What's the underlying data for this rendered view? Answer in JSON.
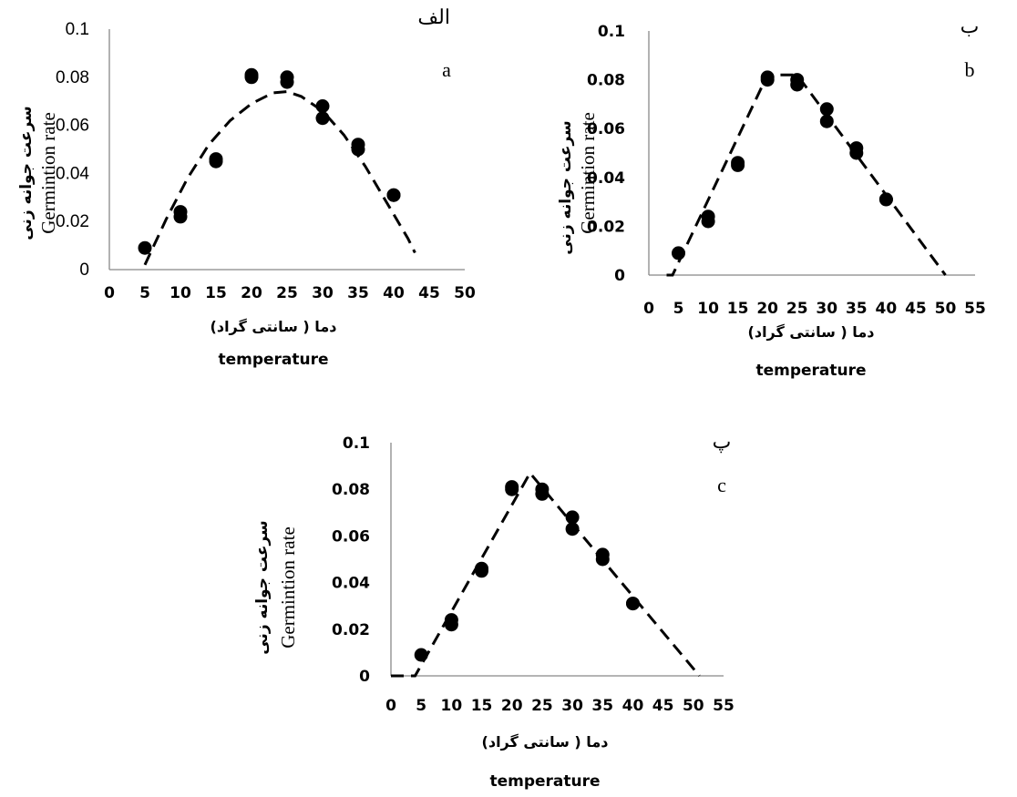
{
  "chart_data": [
    {
      "type": "scatter",
      "panel_fa": "الف",
      "panel_en": "a",
      "xlabel_fa": "دما ( سانتی گراد)",
      "xlabel_en": "temperature",
      "ylabel_fa": "سرعت جوانه زنی",
      "ylabel_en": "Germintion rate",
      "xlim": [
        0,
        50
      ],
      "ylim": [
        0,
        0.1
      ],
      "x_ticks": [
        "0",
        "5",
        "10",
        "15",
        "20",
        "25",
        "30",
        "35",
        "40",
        "45",
        "50"
      ],
      "y_ticks": [
        "0",
        "0.02",
        "0.04",
        "0.06",
        "0.08",
        "0.1"
      ],
      "points": [
        [
          5,
          0.009
        ],
        [
          10,
          0.022
        ],
        [
          10,
          0.024
        ],
        [
          15,
          0.045
        ],
        [
          15,
          0.046
        ],
        [
          20,
          0.08
        ],
        [
          20,
          0.081
        ],
        [
          25,
          0.078
        ],
        [
          25,
          0.08
        ],
        [
          30,
          0.063
        ],
        [
          30,
          0.068
        ],
        [
          35,
          0.05
        ],
        [
          35,
          0.052
        ],
        [
          40,
          0.031
        ],
        [
          40,
          0.031
        ]
      ],
      "fit": {
        "model": "quadratic",
        "points": [
          [
            5,
            0.002
          ],
          [
            8,
            0.021
          ],
          [
            11,
            0.038
          ],
          [
            14,
            0.052
          ],
          [
            17,
            0.062
          ],
          [
            20,
            0.069
          ],
          [
            23,
            0.0735
          ],
          [
            25,
            0.074
          ],
          [
            27,
            0.072
          ],
          [
            30,
            0.066
          ],
          [
            33,
            0.056
          ],
          [
            36,
            0.043
          ],
          [
            39,
            0.028
          ],
          [
            42,
            0.013
          ],
          [
            43,
            0.007
          ]
        ]
      }
    },
    {
      "type": "scatter",
      "panel_fa": "ب",
      "panel_en": "b",
      "xlabel_fa": "دما ( سانتی گراد)",
      "xlabel_en": "temperature",
      "ylabel_fa": "سرعت جوانه زنی",
      "ylabel_en": "Germintion rate",
      "xlim": [
        0,
        55
      ],
      "ylim": [
        0,
        0.1
      ],
      "x_ticks": [
        "0",
        "5",
        "10",
        "15",
        "20",
        "25",
        "30",
        "35",
        "40",
        "45",
        "50",
        "55"
      ],
      "y_ticks": [
        "0",
        "0.02",
        "0.04",
        "0.06",
        "0.08",
        "0.1"
      ],
      "points": [
        [
          5,
          0.009
        ],
        [
          10,
          0.022
        ],
        [
          10,
          0.024
        ],
        [
          15,
          0.045
        ],
        [
          15,
          0.046
        ],
        [
          20,
          0.08
        ],
        [
          20,
          0.081
        ],
        [
          25,
          0.078
        ],
        [
          25,
          0.08
        ],
        [
          30,
          0.063
        ],
        [
          30,
          0.068
        ],
        [
          35,
          0.05
        ],
        [
          35,
          0.052
        ],
        [
          40,
          0.031
        ],
        [
          40,
          0.031
        ]
      ],
      "fit": {
        "model": "segmented",
        "points": [
          [
            3,
            0
          ],
          [
            4,
            0
          ],
          [
            20,
            0.082
          ],
          [
            25,
            0.082
          ],
          [
            50,
            0
          ]
        ]
      }
    },
    {
      "type": "scatter",
      "panel_fa": "پ",
      "panel_en": "c",
      "xlabel_fa": "دما ( سانتی گراد)",
      "xlabel_en": "temperature",
      "ylabel_fa": "سرعت جوانه زنی",
      "ylabel_en": "Germintion rate",
      "xlim": [
        0,
        55
      ],
      "ylim": [
        0,
        0.1
      ],
      "x_ticks": [
        "0",
        "5",
        "10",
        "15",
        "20",
        "25",
        "30",
        "35",
        "40",
        "45",
        "50",
        "55"
      ],
      "y_ticks": [
        "0",
        "0.02",
        "0.04",
        "0.06",
        "0.08",
        "0.1"
      ],
      "points": [
        [
          5,
          0.009
        ],
        [
          10,
          0.022
        ],
        [
          10,
          0.024
        ],
        [
          15,
          0.045
        ],
        [
          15,
          0.046
        ],
        [
          20,
          0.08
        ],
        [
          20,
          0.081
        ],
        [
          25,
          0.078
        ],
        [
          25,
          0.08
        ],
        [
          30,
          0.063
        ],
        [
          30,
          0.068
        ],
        [
          35,
          0.05
        ],
        [
          35,
          0.052
        ],
        [
          40,
          0.031
        ],
        [
          40,
          0.031
        ]
      ],
      "fit": {
        "model": "beta",
        "points": [
          [
            0,
            0
          ],
          [
            4,
            0
          ],
          [
            23,
            0.087
          ],
          [
            51,
            0
          ]
        ]
      }
    }
  ]
}
